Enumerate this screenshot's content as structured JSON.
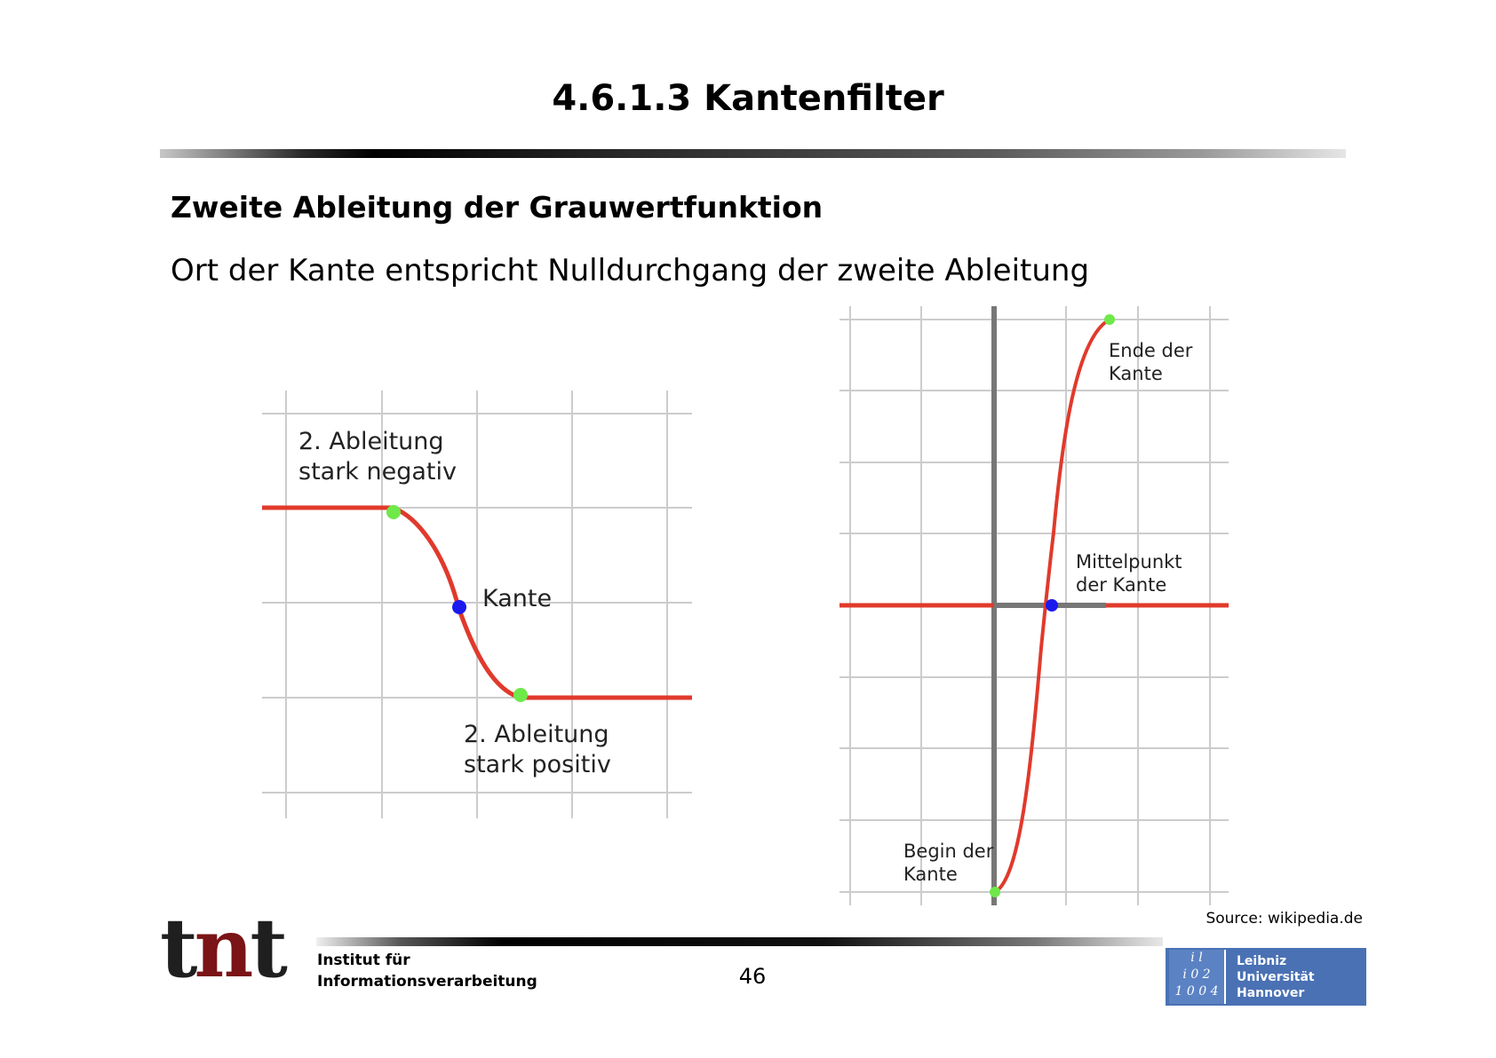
{
  "slide": {
    "title": "4.6.1.3 Kantenfilter",
    "heading": "Zweite Ableitung der Grauwertfunktion",
    "subtext": "Ort der Kante entspricht Nulldurchgang der zweite Ableitung"
  },
  "left_figure": {
    "label_negative_line1": "2. Ableitung",
    "label_negative_line2": "stark negativ",
    "label_edge": "Kante",
    "label_positive_line1": "2. Ableitung",
    "label_positive_line2": "stark positiv",
    "colors": {
      "curve": "#e03a2c",
      "edge_point": "#1a1aee",
      "end_points": "#6fe84a",
      "grid": "#cccccc"
    }
  },
  "right_figure": {
    "label_end_line1": "Ende der",
    "label_end_line2": "Kante",
    "label_mid_line1": "Mittelpunkt",
    "label_mid_line2": "der Kante",
    "label_begin_line1": "Begin der",
    "label_begin_line2": "Kante",
    "colors": {
      "curve": "#e03a2c",
      "axis": "#777777",
      "mid_point": "#1a1aee",
      "end_points": "#6fe84a"
    }
  },
  "footer": {
    "source": "Source: wikipedia.de",
    "logo_tnt_t1": "t",
    "logo_tnt_n": "n",
    "logo_tnt_t2": "t",
    "institute_line1": "Institut für",
    "institute_line2": "Informationsverarbeitung",
    "page_number": "46",
    "luh_symbol_line1": "i l",
    "luh_symbol_line2": "i 0 2",
    "luh_symbol_line3": "1 0 0 4",
    "luh_line1": "Leibniz",
    "luh_line2": "Universität",
    "luh_line3": "Hannover"
  }
}
